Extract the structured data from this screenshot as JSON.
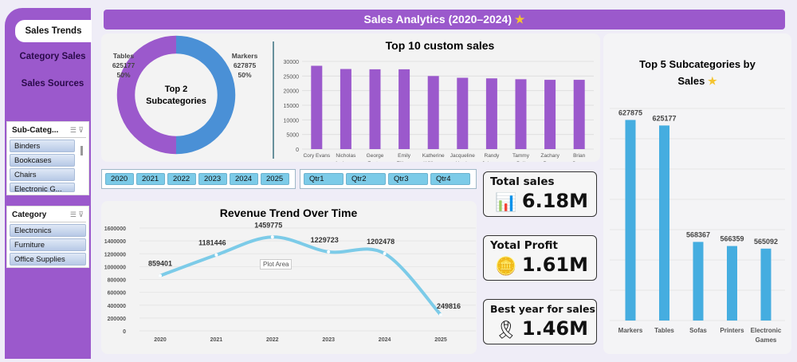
{
  "title": "Sales Analytics (2020–2024)",
  "title_icon": "star-icon",
  "colors": {
    "sidebar": "#9b59cc",
    "purple_bar": "#9b59cc",
    "blue_bar": "#45ade0",
    "donut_blue": "#4a90d6",
    "line": "#7ccbe8",
    "slicer_button": "#7ccbe8"
  },
  "nav": [
    {
      "label": "Sales Trends",
      "active": true
    },
    {
      "label": "Category Sales"
    },
    {
      "label": "Sales Sources"
    }
  ],
  "slicers": {
    "subcategory": {
      "title": "Sub-Categ...",
      "items": [
        "Binders",
        "Bookcases",
        "Chairs",
        "Electronic G..."
      ]
    },
    "category": {
      "title": "Category",
      "items": [
        "Electronics",
        "Furniture",
        "Office Supplies"
      ]
    }
  },
  "years": [
    "2020",
    "2021",
    "2022",
    "2023",
    "2024",
    "2025"
  ],
  "quarters": [
    "Qtr1",
    "Qtr2",
    "Qtr3",
    "Qtr4"
  ],
  "donut": {
    "center_line1": "Top  2",
    "center_line2": "Subcategories",
    "slices": [
      {
        "name": "Tables",
        "value": "625177",
        "pct": "50%",
        "color": "#9b59cc"
      },
      {
        "name": "Markers",
        "value": "627875",
        "pct": "50%",
        "color": "#4a90d6"
      }
    ]
  },
  "kpis": [
    {
      "label": "Total sales",
      "value": "6.18M",
      "icon": "chart-growth-icon"
    },
    {
      "label": "Yotal Profit",
      "value": "1.61M",
      "icon": "coins-icon"
    },
    {
      "label": "Best year for sales",
      "value": "1.46M",
      "icon": "award-ribbon-icon"
    }
  ],
  "plot_area_tooltip": "Plot Area",
  "chart_data": [
    {
      "type": "bar",
      "title": "Top 10 custom sales",
      "categories": [
        "Cory Evans",
        "Nicholas Anderson",
        "George Foster",
        "Emily Ellison",
        "Katherine Williams",
        "Jacqueline Harris",
        "Randy Johnson",
        "Tammy Bell",
        "Zachary Perez",
        "Brian Green"
      ],
      "values": [
        28500,
        27400,
        27300,
        27300,
        25000,
        24400,
        24200,
        23900,
        23700,
        23700
      ],
      "ylim": [
        0,
        30000
      ],
      "yticks": [
        0,
        5000,
        10000,
        15000,
        20000,
        25000,
        30000
      ],
      "grid": true
    },
    {
      "type": "line",
      "title": "Revenue Trend Over Time",
      "categories": [
        "2020",
        "2021",
        "2022",
        "2023",
        "2024",
        "2025"
      ],
      "values": [
        859401,
        1181446,
        1459775,
        1229723,
        1202478,
        249816
      ],
      "ylim": [
        0,
        1600000
      ],
      "yticks": [
        0,
        200000,
        400000,
        600000,
        800000,
        1000000,
        1200000,
        1400000,
        1600000
      ],
      "grid": true,
      "smooth": true
    },
    {
      "type": "bar",
      "title": "Top 5 Subcategories by Sales",
      "title_icon": "star-icon",
      "categories": [
        "Markers",
        "Tables",
        "Sofas",
        "Printers",
        "Electronic Games"
      ],
      "values": [
        627875,
        625177,
        568367,
        566359,
        565092
      ],
      "ylim": [
        530000,
        637000
      ],
      "grid": true
    }
  ]
}
